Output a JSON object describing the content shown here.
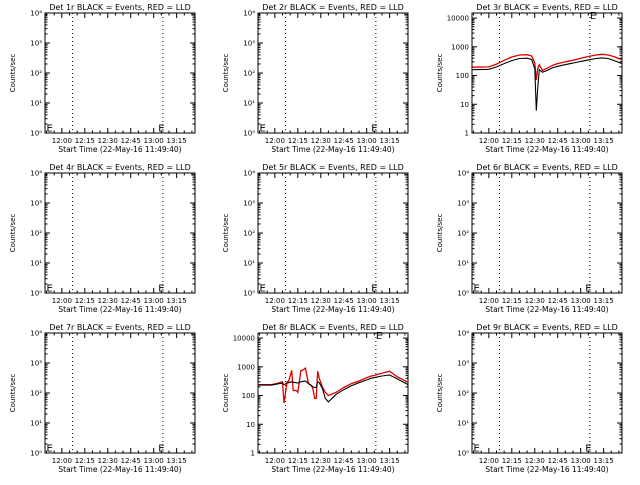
{
  "common": {
    "x_tick_labels": [
      "12:00",
      "12:15",
      "12:30",
      "12:45",
      "13:00",
      "13:15"
    ],
    "x_tick_minutes": [
      0,
      15,
      30,
      45,
      60,
      75
    ],
    "xlim_minutes": [
      -11,
      87
    ],
    "ylabel": "Counts/sec",
    "xlabel": "Start Time (22-May-16 11:49:40)",
    "dotted_minutes": [
      7,
      66
    ],
    "series_colors": {
      "events": "#000000",
      "lld": "#dd0000"
    },
    "lld_legend": "BLACK = Events, RED = LLD"
  },
  "chart_data": [
    {
      "type": "line",
      "title": "Det 1r BLACK = Events, RED = LLD",
      "yscale": "log",
      "ylim": [
        1,
        10000
      ],
      "y_tick_labels": [
        "10⁰",
        "10¹",
        "10²",
        "10³",
        "10⁴"
      ],
      "annotations": [
        {
          "text": "E",
          "x_min": -10,
          "y": 1.5
        },
        {
          "text": "E",
          "x_min": 63,
          "y": 1.5
        }
      ],
      "series": []
    },
    {
      "type": "line",
      "title": "Det 2r BLACK = Events, RED = LLD",
      "yscale": "log",
      "ylim": [
        1,
        10000
      ],
      "y_tick_labels": [
        "10⁰",
        "10¹",
        "10²",
        "10³",
        "10⁴"
      ],
      "annotations": [
        {
          "text": "E",
          "x_min": -10,
          "y": 1.5
        },
        {
          "text": "E",
          "x_min": 63,
          "y": 1.5
        }
      ],
      "series": []
    },
    {
      "type": "line",
      "title": "Det 3r BLACK = Events, RED = LLD",
      "yscale": "log",
      "ylim": [
        1,
        15000
      ],
      "y_tick_labels": [
        "1",
        "10",
        "100",
        "1000",
        "10000"
      ],
      "annotations": [
        {
          "text": "E",
          "x_min": 66,
          "y": 13000
        }
      ],
      "series": [
        {
          "role": "lld",
          "x": [
            -11,
            0,
            5,
            10,
            15,
            20,
            25,
            28,
            30,
            31,
            32,
            33,
            35,
            38,
            42,
            45,
            50,
            55,
            60,
            65,
            70,
            74,
            78,
            82,
            87
          ],
          "y": [
            195,
            200,
            250,
            340,
            440,
            520,
            530,
            480,
            270,
            70,
            180,
            240,
            150,
            180,
            230,
            260,
            300,
            340,
            400,
            460,
            520,
            550,
            520,
            450,
            350
          ]
        },
        {
          "role": "events",
          "x": [
            -11,
            0,
            5,
            10,
            15,
            20,
            25,
            28,
            30,
            31,
            32,
            33,
            35,
            38,
            42,
            45,
            50,
            55,
            60,
            65,
            70,
            74,
            78,
            82,
            87
          ],
          "y": [
            160,
            165,
            200,
            260,
            330,
            390,
            400,
            360,
            170,
            6,
            40,
            160,
            130,
            150,
            190,
            210,
            240,
            270,
            310,
            350,
            390,
            410,
            390,
            330,
            260
          ]
        }
      ]
    },
    {
      "type": "line",
      "title": "Det 4r BLACK = Events, RED = LLD",
      "yscale": "log",
      "ylim": [
        1,
        10000
      ],
      "y_tick_labels": [
        "10⁰",
        "10¹",
        "10²",
        "10³",
        "10⁴"
      ],
      "annotations": [
        {
          "text": "E",
          "x_min": -10,
          "y": 1.5
        },
        {
          "text": "E",
          "x_min": 63,
          "y": 1.5
        }
      ],
      "series": []
    },
    {
      "type": "line",
      "title": "Det 5r BLACK = Events, RED = LLD",
      "yscale": "log",
      "ylim": [
        1,
        10000
      ],
      "y_tick_labels": [
        "10⁰",
        "10¹",
        "10²",
        "10³",
        "10⁴"
      ],
      "annotations": [
        {
          "text": "E",
          "x_min": -10,
          "y": 1.5
        },
        {
          "text": "E",
          "x_min": 63,
          "y": 1.5
        }
      ],
      "series": []
    },
    {
      "type": "line",
      "title": "Det 6r BLACK = Events, RED = LLD",
      "yscale": "log",
      "ylim": [
        1,
        10000
      ],
      "y_tick_labels": [
        "10⁰",
        "10¹",
        "10²",
        "10³",
        "10⁴"
      ],
      "annotations": [
        {
          "text": "E",
          "x_min": -10,
          "y": 1.5
        },
        {
          "text": "E",
          "x_min": 63,
          "y": 1.5
        }
      ],
      "series": []
    },
    {
      "type": "line",
      "title": "Det 7r BLACK = Events, RED = LLD",
      "yscale": "log",
      "ylim": [
        1,
        10000
      ],
      "y_tick_labels": [
        "10⁰",
        "10¹",
        "10²",
        "10³",
        "10⁴"
      ],
      "annotations": [
        {
          "text": "E",
          "x_min": -10,
          "y": 1.5
        },
        {
          "text": "E",
          "x_min": 63,
          "y": 1.5
        }
      ],
      "series": []
    },
    {
      "type": "line",
      "title": "Det 8r BLACK = Events, RED = LLD",
      "yscale": "log",
      "ylim": [
        1,
        15000
      ],
      "y_tick_labels": [
        "1",
        "10",
        "100",
        "1000",
        "10000"
      ],
      "annotations": [
        {
          "text": "E",
          "x_min": 66,
          "y": 13000
        }
      ],
      "series": [
        {
          "role": "lld",
          "x": [
            -11,
            -2,
            3,
            5,
            6,
            8,
            9,
            11,
            12,
            14,
            15,
            17,
            18,
            20,
            22,
            24,
            25,
            26,
            27,
            28,
            29,
            31,
            33,
            35,
            40,
            45,
            50,
            55,
            60,
            63,
            65,
            70,
            75,
            80,
            87
          ],
          "y": [
            240,
            240,
            280,
            300,
            55,
            300,
            310,
            750,
            150,
            150,
            130,
            750,
            750,
            900,
            260,
            220,
            160,
            80,
            80,
            700,
            400,
            200,
            130,
            100,
            130,
            190,
            260,
            320,
            420,
            480,
            500,
            600,
            700,
            450,
            290
          ]
        },
        {
          "role": "events",
          "x": [
            -11,
            -2,
            3,
            5,
            6,
            8,
            9,
            11,
            12,
            14,
            15,
            17,
            18,
            20,
            22,
            24,
            25,
            26,
            27,
            28,
            29,
            31,
            33,
            35,
            40,
            45,
            50,
            55,
            60,
            63,
            65,
            70,
            75,
            80,
            87
          ],
          "y": [
            230,
            230,
            260,
            270,
            240,
            270,
            280,
            300,
            290,
            280,
            270,
            300,
            310,
            320,
            260,
            220,
            200,
            190,
            190,
            300,
            280,
            180,
            80,
            60,
            110,
            160,
            220,
            280,
            350,
            400,
            420,
            480,
            520,
            380,
            240
          ]
        }
      ]
    },
    {
      "type": "line",
      "title": "Det 9r BLACK = Events, RED = LLD",
      "yscale": "log",
      "ylim": [
        1,
        10000
      ],
      "y_tick_labels": [
        "10⁰",
        "10¹",
        "10²",
        "10³",
        "10⁴"
      ],
      "annotations": [
        {
          "text": "E",
          "x_min": -10,
          "y": 1.5
        },
        {
          "text": "E",
          "x_min": 63,
          "y": 1.5
        }
      ],
      "series": []
    }
  ]
}
